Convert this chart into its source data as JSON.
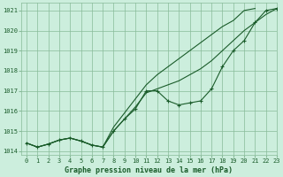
{
  "title": "Graphe pression niveau de la mer (hPa)",
  "background_color": "#cceedd",
  "grid_color": "#88bb99",
  "line_color": "#1a5c2a",
  "xlim": [
    -0.5,
    23
  ],
  "ylim": [
    1013.8,
    1021.4
  ],
  "yticks": [
    1014,
    1015,
    1016,
    1017,
    1018,
    1019,
    1020,
    1021
  ],
  "xticks": [
    0,
    1,
    2,
    3,
    4,
    5,
    6,
    7,
    8,
    9,
    10,
    11,
    12,
    13,
    14,
    15,
    16,
    17,
    18,
    19,
    20,
    21,
    22,
    23
  ],
  "smooth_line": [
    1014.4,
    1014.2,
    1014.35,
    1014.55,
    1014.65,
    1014.5,
    1014.3,
    1014.2,
    1015.0,
    1015.6,
    1016.2,
    1016.9,
    1017.1,
    1017.3,
    1017.5,
    1017.8,
    1018.1,
    1018.5,
    1019.0,
    1019.5,
    1020.0,
    1020.4,
    1020.8,
    1021.1
  ],
  "upper_line": [
    1014.4,
    1014.2,
    1014.35,
    1014.55,
    1014.65,
    1014.5,
    1014.3,
    1014.2,
    1015.2,
    1015.9,
    1016.6,
    1017.3,
    1017.8,
    1018.2,
    1018.6,
    1019.0,
    1019.4,
    1019.8,
    1020.2,
    1020.5,
    1021.0,
    1021.1,
    null,
    null
  ],
  "marker_line": [
    1014.4,
    1014.2,
    1014.35,
    1014.55,
    1014.65,
    1014.5,
    1014.3,
    1014.2,
    1015.0,
    1015.6,
    1016.1,
    1017.0,
    1017.0,
    1016.5,
    1016.3,
    1016.4,
    1016.5,
    1017.1,
    1018.2,
    1019.0,
    1019.5,
    1020.4,
    1021.0,
    1021.1
  ]
}
